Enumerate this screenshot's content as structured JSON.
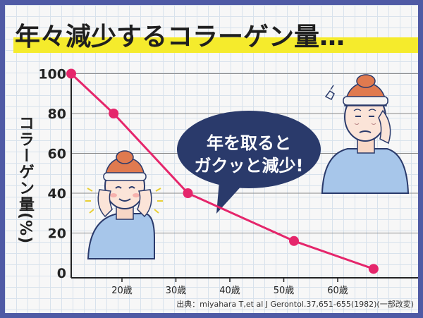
{
  "title": "年々減少するコラーゲン量…",
  "bubble": {
    "line1": "年を取ると",
    "line2": "ガクッと減少!"
  },
  "source": "出典：miyahara T,et al J Gerontol.37,651-655(1982)(一部改変)",
  "colors": {
    "frame": "#4f5aa5",
    "line": "#e5266b",
    "highlight": "#f5eb2c",
    "bubble": "#2a3a6b",
    "gridline": "#8a8a8a"
  },
  "icons": [
    "young-woman-smiling-illustration",
    "older-woman-worried-illustration"
  ],
  "chart_data": {
    "type": "line",
    "title": "",
    "ylabel": "コラーゲン量(%)",
    "xlabel": "",
    "x_ticks": [
      "20歳",
      "30歳",
      "40歳",
      "50歳",
      "60歳"
    ],
    "y_ticks": [
      "0",
      "20",
      "40",
      "60",
      "80",
      "100"
    ],
    "ylim": [
      0,
      100
    ],
    "xlim": [
      8,
      70
    ],
    "series": [
      {
        "x": [
          8,
          16,
          30,
          50,
          65
        ],
        "y": [
          100,
          80,
          40,
          16,
          2
        ]
      }
    ],
    "grid": "horizontal"
  }
}
